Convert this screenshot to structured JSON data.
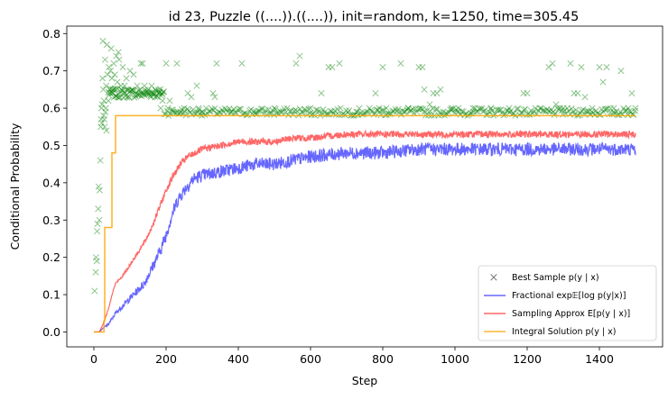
{
  "chart_data": {
    "type": "line",
    "title": "id 23, Puzzle ((....)).((....)), init=random, k=1250, time=305.45",
    "xlabel": "Step",
    "ylabel": "Conditional Probability",
    "xlim": [
      -75,
      1575
    ],
    "ylim": [
      -0.04,
      0.82
    ],
    "xticks": [
      0,
      200,
      400,
      600,
      800,
      1000,
      1200,
      1400
    ],
    "yticks": [
      0.0,
      0.1,
      0.2,
      0.3,
      0.4,
      0.5,
      0.6,
      0.7,
      0.8
    ],
    "grid": false,
    "legend_position": "lower-right",
    "colors": {
      "best_sample": "#008000",
      "fractional": "#0000ff",
      "sampling": "#ff0000",
      "integral": "#ffa500"
    },
    "series": [
      {
        "key": "best_sample",
        "name": "Best Sample p(y | x)",
        "style": "markers-x",
        "points": [
          [
            2,
            0.11
          ],
          [
            5,
            0.16
          ],
          [
            6,
            0.2
          ],
          [
            8,
            0.19
          ],
          [
            9,
            0.27
          ],
          [
            10,
            0.29
          ],
          [
            12,
            0.33
          ],
          [
            13,
            0.39
          ],
          [
            15,
            0.3
          ],
          [
            16,
            0.38
          ],
          [
            18,
            0.46
          ],
          [
            19,
            0.55
          ],
          [
            20,
            0.57
          ],
          [
            21,
            0.6
          ],
          [
            22,
            0.56
          ],
          [
            23,
            0.61
          ],
          [
            24,
            0.68
          ],
          [
            25,
            0.78
          ],
          [
            26,
            0.65
          ],
          [
            27,
            0.58
          ],
          [
            28,
            0.62
          ],
          [
            29,
            0.57
          ],
          [
            30,
            0.55
          ],
          [
            31,
            0.73
          ],
          [
            32,
            0.59
          ],
          [
            33,
            0.6
          ],
          [
            34,
            0.66
          ],
          [
            35,
            0.54
          ],
          [
            36,
            0.77
          ],
          [
            38,
            0.69
          ],
          [
            40,
            0.62
          ],
          [
            42,
            0.71
          ],
          [
            44,
            0.65
          ],
          [
            46,
            0.7
          ],
          [
            48,
            0.76
          ],
          [
            50,
            0.68
          ],
          [
            52,
            0.64
          ],
          [
            55,
            0.72
          ],
          [
            58,
            0.69
          ],
          [
            60,
            0.65
          ],
          [
            62,
            0.74
          ],
          [
            65,
            0.67
          ],
          [
            68,
            0.75
          ],
          [
            70,
            0.73
          ],
          [
            75,
            0.66
          ],
          [
            80,
            0.71
          ],
          [
            85,
            0.66
          ],
          [
            90,
            0.68
          ],
          [
            95,
            0.65
          ],
          [
            100,
            0.7
          ],
          [
            110,
            0.69
          ],
          [
            120,
            0.66
          ],
          [
            130,
            0.72
          ],
          [
            135,
            0.72
          ],
          [
            140,
            0.66
          ],
          [
            150,
            0.65
          ],
          [
            160,
            0.66
          ],
          [
            170,
            0.65
          ],
          [
            180,
            0.64
          ],
          [
            185,
            0.6
          ],
          [
            190,
            0.62
          ],
          [
            200,
            0.72
          ],
          [
            205,
            0.6
          ],
          [
            210,
            0.62
          ],
          [
            220,
            0.59
          ],
          [
            230,
            0.72
          ],
          [
            240,
            0.59
          ],
          [
            250,
            0.6
          ],
          [
            260,
            0.64
          ],
          [
            270,
            0.63
          ],
          [
            285,
            0.66
          ],
          [
            290,
            0.6
          ],
          [
            300,
            0.59
          ],
          [
            330,
            0.64
          ],
          [
            335,
            0.63
          ],
          [
            340,
            0.72
          ],
          [
            380,
            0.59
          ],
          [
            410,
            0.72
          ],
          [
            450,
            0.59
          ],
          [
            500,
            0.6
          ],
          [
            560,
            0.72
          ],
          [
            570,
            0.74
          ],
          [
            600,
            0.6
          ],
          [
            630,
            0.64
          ],
          [
            650,
            0.71
          ],
          [
            660,
            0.71
          ],
          [
            680,
            0.72
          ],
          [
            730,
            0.59
          ],
          [
            780,
            0.64
          ],
          [
            790,
            0.6
          ],
          [
            800,
            0.71
          ],
          [
            810,
            0.6
          ],
          [
            850,
            0.72
          ],
          [
            870,
            0.6
          ],
          [
            900,
            0.71
          ],
          [
            910,
            0.71
          ],
          [
            915,
            0.65
          ],
          [
            930,
            0.61
          ],
          [
            940,
            0.64
          ],
          [
            950,
            0.64
          ],
          [
            960,
            0.65
          ],
          [
            990,
            0.6
          ],
          [
            1010,
            0.6
          ],
          [
            1050,
            0.6
          ],
          [
            1100,
            0.6
          ],
          [
            1150,
            0.6
          ],
          [
            1190,
            0.64
          ],
          [
            1200,
            0.64
          ],
          [
            1260,
            0.71
          ],
          [
            1270,
            0.72
          ],
          [
            1280,
            0.61
          ],
          [
            1300,
            0.6
          ],
          [
            1320,
            0.72
          ],
          [
            1330,
            0.64
          ],
          [
            1340,
            0.64
          ],
          [
            1350,
            0.71
          ],
          [
            1360,
            0.63
          ],
          [
            1380,
            0.6
          ],
          [
            1400,
            0.71
          ],
          [
            1410,
            0.67
          ],
          [
            1420,
            0.71
          ],
          [
            1440,
            0.6
          ],
          [
            1460,
            0.7
          ],
          [
            1480,
            0.6
          ],
          [
            1490,
            0.64
          ],
          [
            1500,
            0.6
          ]
        ]
      },
      {
        "key": "fractional",
        "name": "Fractional exp𝔼[log p(y|x)]",
        "style": "line",
        "points": [
          [
            0,
            0.0
          ],
          [
            15,
            0.0
          ],
          [
            25,
            0.01
          ],
          [
            40,
            0.02
          ],
          [
            60,
            0.05
          ],
          [
            80,
            0.07
          ],
          [
            100,
            0.09
          ],
          [
            120,
            0.11
          ],
          [
            140,
            0.13
          ],
          [
            160,
            0.17
          ],
          [
            180,
            0.21
          ],
          [
            200,
            0.26
          ],
          [
            215,
            0.31
          ],
          [
            230,
            0.35
          ],
          [
            250,
            0.38
          ],
          [
            275,
            0.41
          ],
          [
            300,
            0.42
          ],
          [
            350,
            0.43
          ],
          [
            400,
            0.44
          ],
          [
            450,
            0.45
          ],
          [
            500,
            0.45
          ],
          [
            550,
            0.46
          ],
          [
            600,
            0.47
          ],
          [
            700,
            0.48
          ],
          [
            800,
            0.48
          ],
          [
            900,
            0.49
          ],
          [
            1000,
            0.49
          ],
          [
            1100,
            0.49
          ],
          [
            1200,
            0.49
          ],
          [
            1300,
            0.49
          ],
          [
            1400,
            0.49
          ],
          [
            1500,
            0.49
          ]
        ]
      },
      {
        "key": "sampling",
        "name": "Sampling Approx E[p(y | x)]",
        "style": "line",
        "points": [
          [
            0,
            0.0
          ],
          [
            15,
            0.0
          ],
          [
            25,
            0.02
          ],
          [
            40,
            0.06
          ],
          [
            50,
            0.1
          ],
          [
            60,
            0.13
          ],
          [
            80,
            0.15
          ],
          [
            100,
            0.18
          ],
          [
            120,
            0.21
          ],
          [
            140,
            0.24
          ],
          [
            160,
            0.28
          ],
          [
            180,
            0.33
          ],
          [
            200,
            0.38
          ],
          [
            220,
            0.42
          ],
          [
            240,
            0.45
          ],
          [
            260,
            0.47
          ],
          [
            300,
            0.49
          ],
          [
            350,
            0.5
          ],
          [
            400,
            0.51
          ],
          [
            450,
            0.51
          ],
          [
            500,
            0.51
          ],
          [
            550,
            0.52
          ],
          [
            600,
            0.52
          ],
          [
            700,
            0.53
          ],
          [
            800,
            0.53
          ],
          [
            900,
            0.53
          ],
          [
            1000,
            0.53
          ],
          [
            1100,
            0.53
          ],
          [
            1200,
            0.53
          ],
          [
            1300,
            0.53
          ],
          [
            1400,
            0.53
          ],
          [
            1500,
            0.53
          ]
        ]
      },
      {
        "key": "integral",
        "name": "Integral Solution p(y | x)",
        "style": "step",
        "points": [
          [
            0,
            0.0
          ],
          [
            28,
            0.0
          ],
          [
            28,
            0.03
          ],
          [
            30,
            0.03
          ],
          [
            30,
            0.28
          ],
          [
            50,
            0.28
          ],
          [
            50,
            0.48
          ],
          [
            60,
            0.48
          ],
          [
            60,
            0.58
          ],
          [
            1500,
            0.58
          ]
        ]
      }
    ]
  },
  "legend": {
    "items": [
      {
        "key": "best_sample",
        "label": "Best Sample p(y | x)"
      },
      {
        "key": "fractional",
        "label": "Fractional exp𝔼[log p(y|x)]"
      },
      {
        "key": "sampling",
        "label": "Sampling Approx E[p(y | x)]"
      },
      {
        "key": "integral",
        "label": "Integral Solution p(y | x)"
      }
    ]
  }
}
